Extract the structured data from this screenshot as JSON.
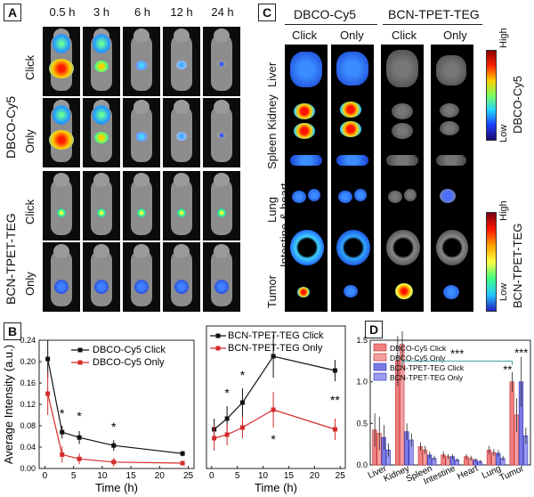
{
  "panels": {
    "a": "A",
    "b": "B",
    "c": "C",
    "d": "D"
  },
  "panel_a": {
    "time_points": [
      "0.5 h",
      "3 h",
      "6 h",
      "12 h",
      "24 h"
    ],
    "group_dbco": "DBCO-Cy5",
    "group_bcn": "BCN-TPET-TEG",
    "row_labels": [
      "Click",
      "Only",
      "Click",
      "Only"
    ]
  },
  "panel_c": {
    "group_dbco": "DBCO-Cy5",
    "group_bcn": "BCN-TPET-TEG",
    "col_labels": [
      "Click",
      "Only",
      "Click",
      "Only"
    ],
    "organs": [
      "Liver",
      "Spleen Kidney",
      "Lung",
      "Intestine & heart",
      "Tumor"
    ],
    "organ_label_liver": "Liver",
    "organ_label_spleen_kidney": "Spleen Kidney",
    "organ_label_lung": "Lung",
    "organ_label_intestine_heart": "Intestine & heart",
    "organ_label_tumor": "Tumor",
    "scale1_high": "High",
    "scale1_low": "Low",
    "scale1_name": "DBCO-Cy5",
    "scale2_high": "High",
    "scale2_low": "Low",
    "scale2_name": "BCN-TPET-TEG"
  },
  "colors": {
    "click": "#111111",
    "only": "#d42a2a",
    "bar_dbco": "#f08080",
    "bar_bcn": "#7a7ae6"
  },
  "chart_data": [
    {
      "type": "line",
      "title": "",
      "xlabel": "Time (h)",
      "ylabel": "Average Intensity (a.u.)",
      "xlim": [
        -1,
        26
      ],
      "ylim": [
        0,
        0.24
      ],
      "xticks": [
        0,
        5,
        10,
        15,
        20,
        25
      ],
      "yticks": [
        0.0,
        0.04,
        0.08,
        0.12,
        0.16,
        0.2,
        0.24
      ],
      "ytick_labels": [
        "0.00",
        "0.04",
        "0.08",
        "0.12",
        "0.16",
        "0.20",
        "0.24"
      ],
      "series": [
        {
          "name": "DBCO-Cy5 Click",
          "x": [
            0.5,
            3,
            6,
            12,
            24
          ],
          "y": [
            0.205,
            0.068,
            0.058,
            0.043,
            0.028
          ],
          "err": [
            0.035,
            0.012,
            0.012,
            0.01,
            0.005
          ]
        },
        {
          "name": "DBCO-Cy5 Only",
          "x": [
            0.5,
            3,
            6,
            12,
            24
          ],
          "y": [
            0.14,
            0.026,
            0.018,
            0.012,
            0.01
          ],
          "err": [
            0.04,
            0.015,
            0.01,
            0.008,
            0.004
          ]
        }
      ],
      "annotations": [
        "*",
        "*",
        "*"
      ]
    },
    {
      "type": "line",
      "title": "",
      "xlabel": "Time (h)",
      "ylabel": "",
      "xlim": [
        -1,
        26
      ],
      "ylim": [
        0,
        0.8
      ],
      "xticks": [
        0,
        5,
        10,
        15,
        20,
        25
      ],
      "series": [
        {
          "name": "BCN-TPET-TEG Click",
          "x": [
            0.5,
            3,
            6,
            12,
            24
          ],
          "y": [
            0.22,
            0.28,
            0.37,
            0.63,
            0.55
          ],
          "err": [
            0.06,
            0.07,
            0.08,
            0.12,
            0.06
          ]
        },
        {
          "name": "BCN-TPET-TEG Only",
          "x": [
            0.5,
            3,
            6,
            12,
            24
          ],
          "y": [
            0.17,
            0.19,
            0.23,
            0.33,
            0.22
          ],
          "err": [
            0.07,
            0.06,
            0.06,
            0.1,
            0.06
          ]
        }
      ],
      "annotations": [
        "*",
        "*",
        "*",
        "*",
        "**"
      ]
    },
    {
      "type": "bar",
      "title": "",
      "xlabel": "",
      "ylabel": "",
      "ylim": [
        0,
        1.5
      ],
      "yticks": [
        0,
        0.5,
        1.0,
        1.5
      ],
      "ytick_labels": [
        "0.0",
        "0.5",
        "1.0",
        "1.5"
      ],
      "categories": [
        "Liver",
        "Kidney",
        "Spleen",
        "Intestine",
        "Heart",
        "Lung",
        "Tumor"
      ],
      "series": [
        {
          "name": "DBCO-Cy5 Click",
          "values": [
            0.42,
            1.25,
            0.22,
            0.12,
            0.1,
            0.18,
            1.0
          ]
        },
        {
          "name": "DBCO-Cy5 Only",
          "values": [
            0.38,
            1.45,
            0.18,
            0.1,
            0.08,
            0.15,
            0.6
          ]
        },
        {
          "name": "BCN-TPET-TEG Click",
          "values": [
            0.33,
            0.4,
            0.12,
            0.1,
            0.06,
            0.14,
            1.0
          ]
        },
        {
          "name": "BCN-TPET-TEG Only",
          "values": [
            0.18,
            0.3,
            0.08,
            0.06,
            0.04,
            0.08,
            0.35
          ]
        }
      ],
      "errors": [
        [
          0.2,
          0.3,
          0.05,
          0.04,
          0.03,
          0.05,
          0.12
        ],
        [
          0.2,
          0.25,
          0.05,
          0.03,
          0.03,
          0.04,
          0.2
        ],
        [
          0.15,
          0.1,
          0.04,
          0.03,
          0.02,
          0.04,
          0.3
        ],
        [
          0.08,
          0.08,
          0.03,
          0.02,
          0.02,
          0.03,
          0.1
        ]
      ],
      "annotations": [
        "***",
        "**",
        "***"
      ]
    }
  ]
}
